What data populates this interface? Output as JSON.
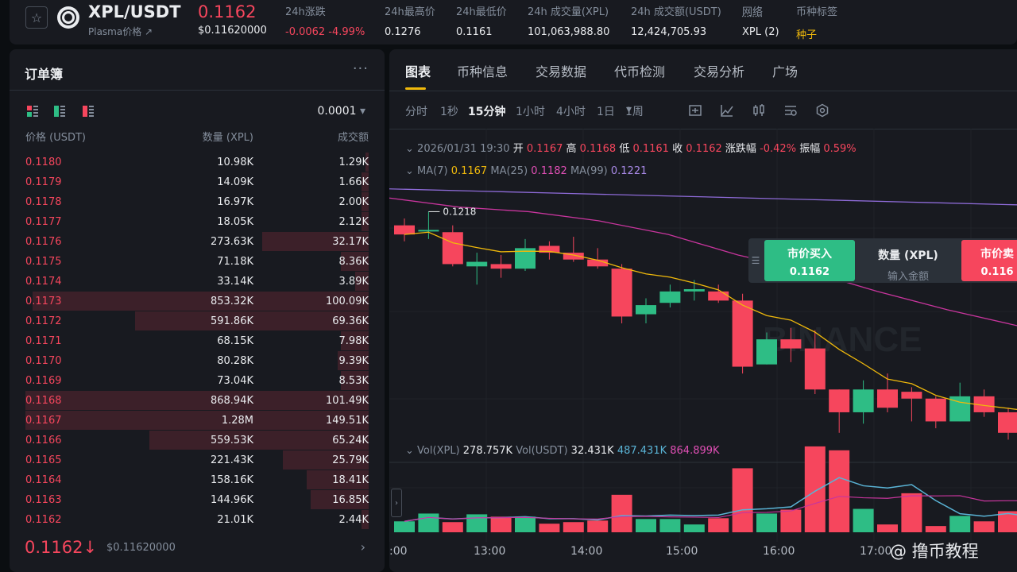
{
  "header": {
    "pair": "XPL/USDT",
    "subtitle": "Plasma价格 ↗",
    "last_price": "0.1162",
    "last_price_usd": "$0.11620000",
    "stats": [
      {
        "label": "24h涨跌",
        "value": "-0.0062 -4.99%",
        "color": "#f6465d"
      },
      {
        "label": "24h最高价",
        "value": "0.1276"
      },
      {
        "label": "24h最低价",
        "value": "0.1161"
      },
      {
        "label": "24h 成交量(XPL)",
        "value": "101,063,988.80"
      },
      {
        "label": "24h 成交额(USDT)",
        "value": "12,424,705.93"
      },
      {
        "label": "网络",
        "value": "XPL (2)"
      },
      {
        "label": "币种标签",
        "value": "种子",
        "color": "#f0b90b"
      }
    ]
  },
  "orderbook": {
    "title": "订单簿",
    "precision": "0.0001",
    "col_price": "价格 (USDT)",
    "col_qty": "数量 (XPL)",
    "col_total": "成交额",
    "asks": [
      {
        "price": "0.1180",
        "qty": "10.98K",
        "total": "1.29K",
        "depth": 0.01
      },
      {
        "price": "0.1179",
        "qty": "14.09K",
        "total": "1.66K",
        "depth": 0.02
      },
      {
        "price": "0.1178",
        "qty": "16.97K",
        "total": "2.00K",
        "depth": 0.02
      },
      {
        "price": "0.1177",
        "qty": "18.05K",
        "total": "2.12K",
        "depth": 0.02
      },
      {
        "price": "0.1176",
        "qty": "273.63K",
        "total": "32.17K",
        "depth": 0.31
      },
      {
        "price": "0.1175",
        "qty": "71.18K",
        "total": "8.36K",
        "depth": 0.08
      },
      {
        "price": "0.1174",
        "qty": "33.14K",
        "total": "3.89K",
        "depth": 0.04
      },
      {
        "price": "0.1173",
        "qty": "853.32K",
        "total": "100.09K",
        "depth": 0.98
      },
      {
        "price": "0.1172",
        "qty": "591.86K",
        "total": "69.36K",
        "depth": 0.68
      },
      {
        "price": "0.1171",
        "qty": "68.15K",
        "total": "7.98K",
        "depth": 0.08
      },
      {
        "price": "0.1170",
        "qty": "80.28K",
        "total": "9.39K",
        "depth": 0.09
      },
      {
        "price": "0.1169",
        "qty": "73.04K",
        "total": "8.53K",
        "depth": 0.08
      },
      {
        "price": "0.1168",
        "qty": "868.94K",
        "total": "101.49K",
        "depth": 1.0
      },
      {
        "price": "0.1167",
        "qty": "1.28M",
        "total": "149.51K",
        "depth": 1.0
      },
      {
        "price": "0.1166",
        "qty": "559.53K",
        "total": "65.24K",
        "depth": 0.64
      },
      {
        "price": "0.1165",
        "qty": "221.43K",
        "total": "25.79K",
        "depth": 0.25
      },
      {
        "price": "0.1164",
        "qty": "158.16K",
        "total": "18.41K",
        "depth": 0.18
      },
      {
        "price": "0.1163",
        "qty": "144.96K",
        "total": "16.85K",
        "depth": 0.17
      },
      {
        "price": "0.1162",
        "qty": "21.01K",
        "total": "2.44K",
        "depth": 0.02
      }
    ],
    "last_price": "0.1162↓",
    "last_price_usd": "$0.11620000"
  },
  "chart": {
    "tabs": [
      "图表",
      "币种信息",
      "交易数据",
      "代币检测",
      "交易分析",
      "广场"
    ],
    "intervals": [
      "分时",
      "1秒",
      "15分钟",
      "1小时",
      "4小时",
      "1日",
      "1周"
    ],
    "active_interval": "15分钟",
    "ohlc": {
      "date": "2026/01/31 19:30",
      "open_label": "开",
      "open": "0.1167",
      "high_label": "高",
      "high": "0.1168",
      "low_label": "低",
      "low": "0.1161",
      "close_label": "收",
      "close": "0.1162",
      "change_label": "涨跌幅",
      "change": "-0.42%",
      "amp_label": "振幅",
      "amp": "0.59%"
    },
    "ma": {
      "ma7_label": "MA(7)",
      "ma7": "0.1167",
      "ma25_label": "MA(25)",
      "ma25": "0.1182",
      "ma99_label": "MA(99)",
      "ma99": "0.1221"
    },
    "vol": {
      "vol_label": "Vol(XPL)",
      "vol": "278.757K",
      "volu_label": "Vol(USDT)",
      "volu": "32.431K",
      "ma1": "487.431K",
      "ma2": "864.899K"
    },
    "high_marker": "0.1218",
    "x_labels": [
      ":00",
      "13:00",
      "14:00",
      "15:00",
      "16:00",
      "17:00"
    ],
    "watermark": "BINANCE",
    "colors": {
      "up": "#2ebd85",
      "down": "#f6465d",
      "ma7": "#f0b90b",
      "ma25": "#c8359d",
      "ma99": "#8e6bd8",
      "vol_ma1": "#5ab4d6",
      "vol_ma2": "#c8359d"
    }
  },
  "chart_data": {
    "type": "candlestick",
    "candles": [
      {
        "o": 0.1212,
        "h": 0.1215,
        "l": 0.1205,
        "c": 0.1208
      },
      {
        "o": 0.121,
        "h": 0.1218,
        "l": 0.1206,
        "c": 0.121
      },
      {
        "o": 0.1209,
        "h": 0.1212,
        "l": 0.1194,
        "c": 0.1195
      },
      {
        "o": 0.1194,
        "h": 0.12,
        "l": 0.1186,
        "c": 0.1196
      },
      {
        "o": 0.1195,
        "h": 0.1199,
        "l": 0.1189,
        "c": 0.1193
      },
      {
        "o": 0.1193,
        "h": 0.1206,
        "l": 0.1192,
        "c": 0.1202
      },
      {
        "o": 0.1203,
        "h": 0.1205,
        "l": 0.1197,
        "c": 0.12
      },
      {
        "o": 0.12,
        "h": 0.1207,
        "l": 0.1196,
        "c": 0.1197
      },
      {
        "o": 0.1197,
        "h": 0.1202,
        "l": 0.1193,
        "c": 0.1194
      },
      {
        "o": 0.1193,
        "h": 0.1195,
        "l": 0.1169,
        "c": 0.1172
      },
      {
        "o": 0.1173,
        "h": 0.118,
        "l": 0.1169,
        "c": 0.1177
      },
      {
        "o": 0.1178,
        "h": 0.1186,
        "l": 0.1176,
        "c": 0.1183
      },
      {
        "o": 0.1183,
        "h": 0.1188,
        "l": 0.1179,
        "c": 0.1184
      },
      {
        "o": 0.1183,
        "h": 0.1186,
        "l": 0.1178,
        "c": 0.1179
      },
      {
        "o": 0.1179,
        "h": 0.1182,
        "l": 0.1147,
        "c": 0.115
      },
      {
        "o": 0.1151,
        "h": 0.1165,
        "l": 0.1151,
        "c": 0.1162
      },
      {
        "o": 0.1162,
        "h": 0.1167,
        "l": 0.1152,
        "c": 0.1158
      },
      {
        "o": 0.1158,
        "h": 0.1166,
        "l": 0.1138,
        "c": 0.114
      },
      {
        "o": 0.114,
        "h": 0.114,
        "l": 0.1121,
        "c": 0.113
      },
      {
        "o": 0.113,
        "h": 0.1144,
        "l": 0.1125,
        "c": 0.114
      },
      {
        "o": 0.114,
        "h": 0.1147,
        "l": 0.113,
        "c": 0.1132
      },
      {
        "o": 0.1139,
        "h": 0.1141,
        "l": 0.1126,
        "c": 0.1136
      },
      {
        "o": 0.1136,
        "h": 0.1137,
        "l": 0.1123,
        "c": 0.1126
      },
      {
        "o": 0.1126,
        "h": 0.1143,
        "l": 0.1126,
        "c": 0.1137
      },
      {
        "o": 0.1137,
        "h": 0.114,
        "l": 0.1128,
        "c": 0.113
      },
      {
        "o": 0.113,
        "h": 0.1132,
        "l": 0.1118,
        "c": 0.1121
      },
      {
        "o": 0.1121,
        "h": 0.1133,
        "l": 0.112,
        "c": 0.1131
      },
      {
        "o": 0.1131,
        "h": 0.1133,
        "l": 0.1126,
        "c": 0.1127
      }
    ],
    "volume": [
      {
        "v": 140,
        "up": true
      },
      {
        "v": 240,
        "up": true
      },
      {
        "v": 130,
        "up": false
      },
      {
        "v": 230,
        "up": true
      },
      {
        "v": 200,
        "up": false
      },
      {
        "v": 200,
        "up": true
      },
      {
        "v": 110,
        "up": false
      },
      {
        "v": 130,
        "up": false
      },
      {
        "v": 150,
        "up": false
      },
      {
        "v": 480,
        "up": false
      },
      {
        "v": 170,
        "up": true
      },
      {
        "v": 170,
        "up": true
      },
      {
        "v": 100,
        "up": true
      },
      {
        "v": 180,
        "up": false
      },
      {
        "v": 820,
        "up": false
      },
      {
        "v": 240,
        "up": true
      },
      {
        "v": 290,
        "up": false
      },
      {
        "v": 1100,
        "up": false
      },
      {
        "v": 1050,
        "up": false
      },
      {
        "v": 300,
        "up": true
      },
      {
        "v": 100,
        "up": false
      },
      {
        "v": 500,
        "up": false
      },
      {
        "v": 80,
        "up": false
      },
      {
        "v": 210,
        "up": true
      },
      {
        "v": 140,
        "up": false
      },
      {
        "v": 270,
        "up": false
      },
      {
        "v": 290,
        "up": true
      },
      {
        "v": 210,
        "up": false
      }
    ],
    "ylim": [
      0.1115,
      0.123
    ],
    "vol_max": 1150,
    "x_labels": [
      ":00",
      "13:00",
      "14:00",
      "15:00",
      "16:00",
      "17:00"
    ]
  },
  "trade_widget": {
    "buy_label": "市价买入",
    "buy_price": "0.1162",
    "qty_label": "数量 (XPL)",
    "qty_placeholder": "输入金额",
    "sell_label": "市价卖",
    "sell_price": "0.116"
  },
  "watermark": "@ 撸币教程"
}
